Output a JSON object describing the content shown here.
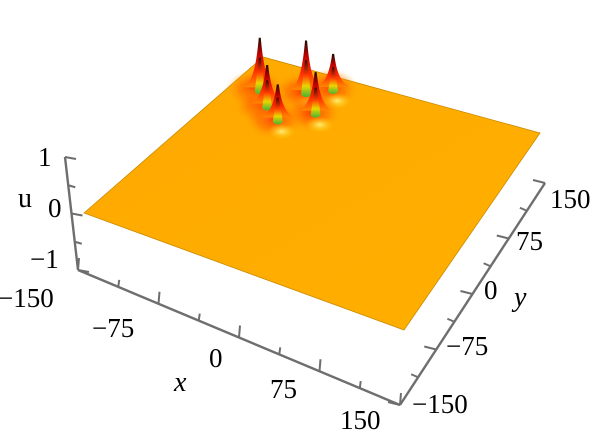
{
  "chart_data": {
    "type": "surface3d",
    "title": "",
    "xlabel": "x",
    "ylabel": "y",
    "zlabel": "u",
    "xlim": [
      -150,
      150
    ],
    "ylim": [
      -150,
      150
    ],
    "zlim": [
      -1,
      1
    ],
    "x_ticks": [
      "−150",
      "−75",
      "0",
      "75",
      "150"
    ],
    "y_ticks": [
      "−150",
      "−75",
      "0",
      "75",
      "150"
    ],
    "z_ticks": [
      "−1",
      "0",
      "1"
    ],
    "grid": false,
    "legend": "none",
    "surface_color": "#ffae00",
    "peak_colors": {
      "base": "#ff9a00",
      "mid": "#ff2a00",
      "top": "#1a0d00",
      "trough": "#2fbf3a"
    },
    "peaks": [
      {
        "x": -125,
        "y": 105,
        "u": 0.9
      },
      {
        "x": -105,
        "y": 85,
        "u": 0.7
      },
      {
        "x": -85,
        "y": 120,
        "u": 0.9
      },
      {
        "x": -60,
        "y": 95,
        "u": 0.7
      },
      {
        "x": -85,
        "y": 70,
        "u": 0.6
      },
      {
        "x": -65,
        "y": 135,
        "u": 0.6
      }
    ]
  }
}
